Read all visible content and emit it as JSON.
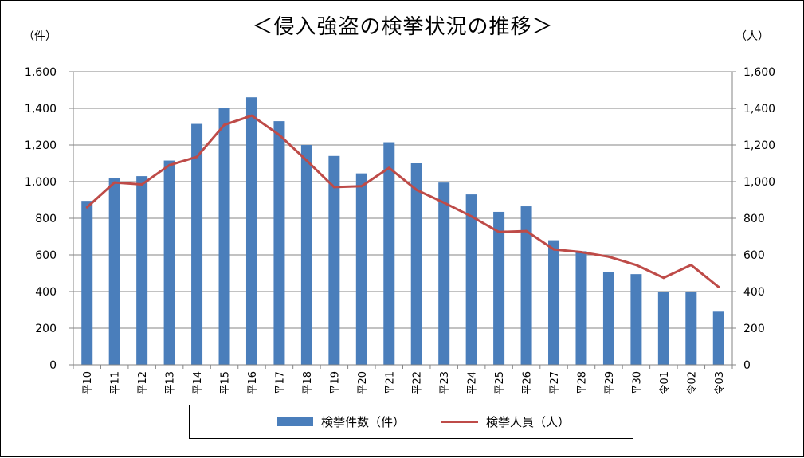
{
  "title": "＜侵入強盗の検挙状況の推移＞",
  "left_unit": "（件）",
  "right_unit": "（人）",
  "colors": {
    "bar": "#4a7ebb",
    "line": "#be4b48",
    "grid": "#868686"
  },
  "legend": {
    "bar_label": "検挙件数（件）",
    "line_label": "検挙人員（人）"
  },
  "chart_data": {
    "type": "bar",
    "categories": [
      "平10",
      "平11",
      "平12",
      "平13",
      "平14",
      "平15",
      "平16",
      "平17",
      "平18",
      "平19",
      "平20",
      "平21",
      "平22",
      "平23",
      "平24",
      "平25",
      "平26",
      "平27",
      "平28",
      "平29",
      "平30",
      "令01",
      "令02",
      "令03"
    ],
    "series": [
      {
        "name": "検挙件数（件）",
        "type": "bar",
        "axis": "left",
        "values": [
          895,
          1020,
          1030,
          1115,
          1315,
          1400,
          1460,
          1330,
          1200,
          1140,
          1045,
          1215,
          1100,
          995,
          930,
          835,
          865,
          680,
          620,
          505,
          495,
          400,
          400,
          290
        ]
      },
      {
        "name": "検挙人員（人）",
        "type": "line",
        "axis": "right",
        "values": [
          860,
          995,
          985,
          1090,
          1135,
          1310,
          1360,
          1255,
          1115,
          970,
          975,
          1075,
          955,
          885,
          810,
          725,
          730,
          630,
          615,
          590,
          545,
          475,
          545,
          425
        ]
      }
    ],
    "y_left": {
      "min": 0,
      "max": 1600,
      "ticks": [
        "0",
        "200",
        "400",
        "600",
        "800",
        "1,000",
        "1,200",
        "1,400",
        "1,600"
      ]
    },
    "y_right": {
      "min": 0,
      "max": 1600,
      "ticks": [
        "0",
        "200",
        "400",
        "600",
        "800",
        "1,000",
        "1,200",
        "1,400",
        "1,600"
      ]
    },
    "grid": true,
    "legend_position": "bottom"
  }
}
